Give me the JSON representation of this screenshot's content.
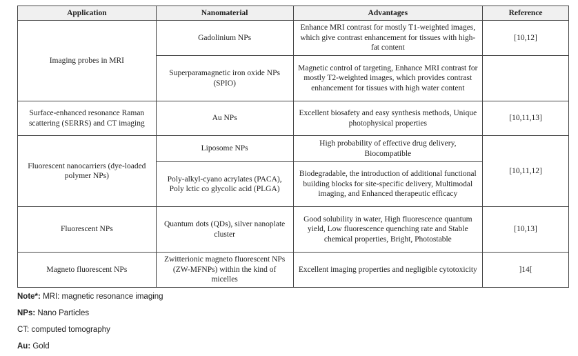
{
  "table": {
    "headers": [
      "Application",
      "Nanomaterial",
      "Advantages",
      "Reference"
    ],
    "rows": [
      {
        "application": "Imaging probes in MRI",
        "nanomaterial": "Gadolinium NPs",
        "advantages": "Enhance MRI contrast for mostly T1-weighted images, which give contrast enhancement for tissues with high-fat content",
        "reference": "[10,12]"
      },
      {
        "nanomaterial": "Superparamagnetic iron oxide NPs (SPIO)",
        "advantages": "Magnetic control of targeting, Enhance MRI contrast for mostly T2-weighted images, which provides contrast enhancement for tissues with high water content",
        "reference": ""
      },
      {
        "application": "Surface-enhanced resonance Raman scattering (SERRS) and CT imaging",
        "nanomaterial": "Au NPs",
        "advantages": "Excellent biosafety and easy synthesis methods, Unique photophysical properties",
        "reference": "[10,11,13]"
      },
      {
        "application": "Fluorescent nanocarriers (dye-loaded polymer NPs)",
        "nanomaterial": "Liposome NPs",
        "advantages": "High probability of effective drug delivery, Biocompatible",
        "reference": "[10,11,12]"
      },
      {
        "nanomaterial": "Poly-alkyl-cyano acrylates (PACA), Poly lctic co glycolic acid (PLGA)",
        "advantages": "Biodegradable, the introduction of additional functional building blocks for site-specific delivery, Multimodal imaging, and Enhanced therapeutic efficacy"
      },
      {
        "application": "Fluorescent NPs",
        "nanomaterial": "Quantum dots (QDs), silver nanoplate cluster",
        "advantages": "Good solubility in water, High fluorescence quantum yield, Low fluorescence quenching rate and Stable chemical properties, Bright, Photostable",
        "reference": "[10,13]"
      },
      {
        "application": "Magneto fluorescent NPs",
        "nanomaterial": "Zwitterionic magneto fluorescent NPs (ZW-MFNPs) within the kind of micelles",
        "advantages": "Excellent imaging properties and negligible cytotoxicity",
        "reference": "]14["
      }
    ]
  },
  "notes": [
    {
      "term": "Note*:",
      "text": " MRI: magnetic resonance imaging"
    },
    {
      "term": "NPs:",
      "text": " Nano Particles"
    },
    {
      "term": "",
      "text": "CT: computed tomography"
    },
    {
      "term": "Au:",
      "text": " Gold"
    }
  ]
}
